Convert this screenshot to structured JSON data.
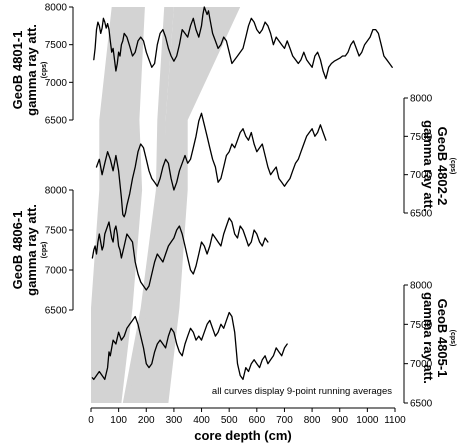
{
  "chart_data": {
    "type": "line",
    "xlabel": "core depth (cm)",
    "xlim": [
      0,
      1100
    ],
    "x_ticks": [
      "0",
      "100",
      "200",
      "300",
      "400",
      "500",
      "600",
      "700",
      "800",
      "900",
      "1000",
      "1100"
    ],
    "note": "all curves display 9-point running averages",
    "panels": [
      {
        "core": "GeoB 4801-1",
        "title_line1": "GeoB 4801-1",
        "title_line2": "gamma ray att.",
        "unit": "(cps)",
        "axis_side": "left",
        "ylim": [
          6500,
          8000
        ],
        "y_ticks": [
          "6500",
          "7000",
          "7500",
          "8000"
        ],
        "x": [
          10,
          15,
          20,
          25,
          30,
          35,
          40,
          45,
          50,
          55,
          60,
          65,
          70,
          75,
          80,
          85,
          90,
          95,
          100,
          105,
          110,
          115,
          120,
          130,
          140,
          150,
          160,
          170,
          180,
          190,
          200,
          210,
          220,
          230,
          240,
          250,
          260,
          270,
          280,
          290,
          300,
          310,
          320,
          330,
          340,
          350,
          360,
          370,
          380,
          390,
          400,
          405,
          410,
          415,
          420,
          425,
          430,
          440,
          450,
          460,
          470,
          480,
          490,
          500,
          510,
          520,
          530,
          540,
          550,
          560,
          570,
          580,
          590,
          600,
          610,
          620,
          630,
          640,
          650,
          660,
          670,
          680,
          690,
          700,
          710,
          720,
          730,
          740,
          750,
          760,
          770,
          780,
          790,
          800,
          810,
          820,
          830,
          840,
          850,
          860,
          870,
          880,
          890,
          900,
          910,
          920,
          930,
          940,
          950,
          960,
          970,
          980,
          990,
          1000,
          1010,
          1020,
          1030,
          1040,
          1050,
          1060,
          1070,
          1080,
          1090
        ],
        "y": [
          7300,
          7450,
          7700,
          7800,
          7750,
          7650,
          7720,
          7850,
          7800,
          7720,
          7780,
          7700,
          7550,
          7400,
          7450,
          7300,
          7150,
          7250,
          7400,
          7350,
          7500,
          7550,
          7650,
          7600,
          7480,
          7350,
          7400,
          7550,
          7600,
          7550,
          7400,
          7300,
          7200,
          7250,
          7500,
          7650,
          7700,
          7600,
          7450,
          7350,
          7280,
          7350,
          7500,
          7700,
          7650,
          7600,
          7750,
          7850,
          7700,
          7600,
          7750,
          7900,
          8000,
          7950,
          7900,
          7950,
          7850,
          7650,
          7550,
          7450,
          7500,
          7600,
          7550,
          7400,
          7250,
          7300,
          7350,
          7400,
          7450,
          7600,
          7750,
          7850,
          7800,
          7700,
          7650,
          7700,
          7800,
          7750,
          7650,
          7500,
          7600,
          7550,
          7500,
          7450,
          7550,
          7450,
          7350,
          7300,
          7250,
          7300,
          7400,
          7300,
          7250,
          7200,
          7350,
          7400,
          7300,
          7150,
          7050,
          7200,
          7250,
          7280,
          7300,
          7320,
          7350,
          7350,
          7400,
          7500,
          7550,
          7450,
          7350,
          7400,
          7500,
          7550,
          7600,
          7700,
          7700,
          7650,
          7500,
          7350,
          7300,
          7250,
          7200
        ]
      },
      {
        "core": "GeoB 4802-2",
        "title_line1": "GeoB 4802-2",
        "title_line2": "gamma ray att.",
        "unit": "(cps)",
        "axis_side": "right",
        "ylim": [
          6500,
          8000
        ],
        "y_ticks": [
          "6500",
          "7000",
          "7500",
          "8000"
        ],
        "x": [
          20,
          30,
          40,
          50,
          60,
          70,
          80,
          90,
          100,
          110,
          115,
          120,
          125,
          130,
          140,
          150,
          160,
          170,
          180,
          190,
          200,
          210,
          220,
          230,
          240,
          250,
          260,
          270,
          280,
          290,
          300,
          310,
          320,
          330,
          340,
          350,
          360,
          370,
          380,
          390,
          400,
          410,
          420,
          430,
          440,
          450,
          460,
          470,
          480,
          490,
          500,
          510,
          520,
          530,
          540,
          550,
          560,
          570,
          580,
          590,
          600,
          610,
          620,
          630,
          640,
          650,
          660,
          670,
          680,
          690,
          700,
          710,
          720,
          730,
          740,
          750,
          760,
          770,
          780,
          790,
          800,
          810,
          820,
          830,
          840,
          850
        ],
        "y": [
          7100,
          7200,
          7000,
          7150,
          7300,
          7200,
          7050,
          7250,
          7050,
          6700,
          6480,
          6450,
          6500,
          6600,
          6750,
          6950,
          7100,
          7300,
          7400,
          7350,
          7200,
          7050,
          6950,
          6900,
          6850,
          6950,
          7100,
          7200,
          7150,
          6950,
          6800,
          6900,
          7050,
          7150,
          7250,
          7150,
          7200,
          7350,
          7500,
          7700,
          7800,
          7650,
          7500,
          7350,
          7200,
          7100,
          6900,
          6950,
          7100,
          7250,
          7300,
          7400,
          7350,
          7450,
          7550,
          7600,
          7500,
          7450,
          7550,
          7400,
          7300,
          7350,
          7400,
          7250,
          7100,
          7000,
          7050,
          7100,
          6950,
          6900,
          6850,
          6900,
          6950,
          7050,
          7150,
          7200,
          7300,
          7400,
          7500,
          7550,
          7600,
          7500,
          7550,
          7650,
          7550,
          7450
        ]
      },
      {
        "core": "GeoB 4806-1",
        "title_line1": "GeoB 4806-1",
        "title_line2": "gamma ray att.",
        "unit": "(cps)",
        "axis_side": "left",
        "ylim": [
          6500,
          8000
        ],
        "y_ticks": [
          "6500",
          "7000",
          "7500",
          "8000"
        ],
        "x": [
          5,
          10,
          15,
          20,
          25,
          30,
          35,
          40,
          45,
          50,
          55,
          60,
          65,
          70,
          75,
          80,
          85,
          90,
          95,
          100,
          105,
          110,
          120,
          130,
          140,
          150,
          160,
          170,
          180,
          190,
          200,
          210,
          220,
          230,
          240,
          250,
          260,
          270,
          280,
          290,
          300,
          310,
          320,
          330,
          340,
          350,
          360,
          370,
          380,
          390,
          400,
          410,
          420,
          430,
          440,
          450,
          460,
          470,
          480,
          490,
          500,
          510,
          520,
          530,
          540,
          550,
          560,
          570,
          580,
          590,
          600,
          610,
          620,
          630,
          640
        ],
        "y": [
          7150,
          7250,
          7300,
          7200,
          7350,
          7450,
          7350,
          7250,
          7300,
          7450,
          7500,
          7550,
          7600,
          7500,
          7400,
          7350,
          7500,
          7550,
          7450,
          7300,
          7250,
          7150,
          7300,
          7450,
          7400,
          7350,
          7100,
          6950,
          6850,
          6800,
          6750,
          6800,
          6950,
          7100,
          7200,
          7150,
          7100,
          7200,
          7300,
          7350,
          7400,
          7500,
          7550,
          7450,
          7300,
          7150,
          7000,
          6950,
          7050,
          7200,
          7350,
          7300,
          7200,
          7300,
          7450,
          7400,
          7350,
          7300,
          7450,
          7550,
          7650,
          7600,
          7450,
          7400,
          7550,
          7500,
          7400,
          7300,
          7350,
          7500,
          7450,
          7350,
          7300,
          7400,
          7350
        ]
      },
      {
        "core": "GeoB 4805-1",
        "title_line1": "GeoB 4805-1",
        "title_line2": "gamma ray att.",
        "unit": "(cps)",
        "axis_side": "right",
        "ylim": [
          6500,
          8000
        ],
        "y_ticks": [
          "6500",
          "7000",
          "7500",
          "8000"
        ],
        "x": [
          5,
          10,
          20,
          30,
          40,
          50,
          60,
          65,
          70,
          75,
          80,
          90,
          100,
          110,
          120,
          130,
          140,
          150,
          160,
          170,
          180,
          190,
          200,
          210,
          220,
          230,
          240,
          250,
          260,
          270,
          280,
          290,
          300,
          310,
          320,
          330,
          340,
          350,
          360,
          370,
          380,
          390,
          400,
          410,
          420,
          430,
          440,
          450,
          460,
          470,
          480,
          490,
          500,
          510,
          520,
          530,
          540,
          550,
          560,
          570,
          580,
          590,
          600,
          610,
          620,
          630,
          640,
          650,
          660,
          670,
          680,
          690,
          700,
          710
        ],
        "y": [
          6820,
          6800,
          6850,
          6900,
          6850,
          6800,
          6950,
          7150,
          7100,
          7200,
          7300,
          7250,
          7400,
          7300,
          7350,
          7450,
          7500,
          7550,
          7600,
          7500,
          7350,
          7200,
          7000,
          6950,
          7000,
          7150,
          7250,
          7300,
          7250,
          7200,
          7350,
          7450,
          7400,
          7250,
          7150,
          7100,
          7250,
          7350,
          7450,
          7400,
          7300,
          7350,
          7300,
          7400,
          7500,
          7550,
          7450,
          7350,
          7400,
          7500,
          7450,
          7550,
          7650,
          7600,
          7400,
          7000,
          6850,
          6800,
          6950,
          6900,
          7000,
          7050,
          7000,
          6950,
          7050,
          7100,
          7000,
          7050,
          7100,
          7200,
          7150,
          7100,
          7200,
          7250
        ]
      }
    ],
    "correlation_bands": [
      {
        "depths": [
          75,
          30,
          30,
          0,
          0
        ]
      },
      {
        "depths": [
          180,
          160,
          170,
          135,
          95
        ]
      },
      {
        "depths": [
          300,
          270,
          260,
          195,
          125
        ]
      },
      {
        "depths": [
          540,
          350,
          350,
          320,
          280
        ]
      }
    ]
  }
}
